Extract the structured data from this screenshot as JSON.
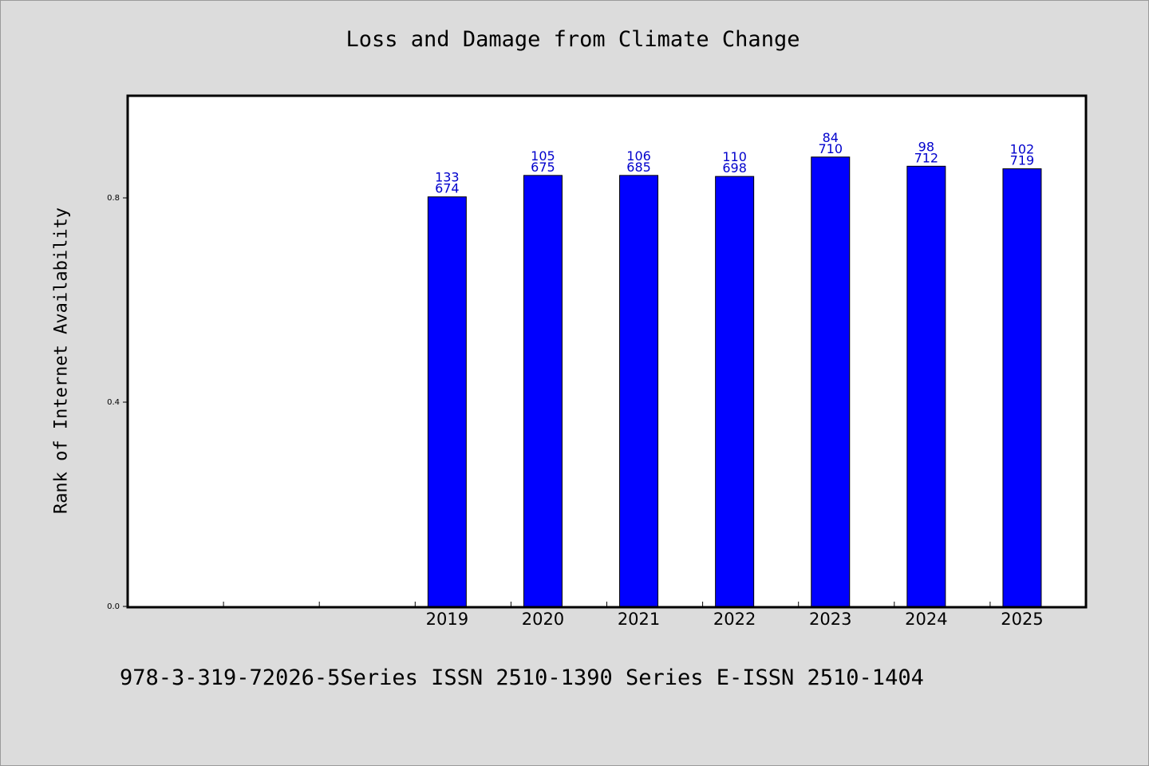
{
  "chart_data": {
    "type": "bar",
    "title": "Loss and Damage from Climate Change",
    "xlabel": "",
    "ylabel": "Rank of Internet Availability",
    "categories": [
      "",
      "",
      "",
      "2019",
      "2020",
      "2021",
      "2022",
      "2023",
      "2024",
      "2025"
    ],
    "values": [
      null,
      null,
      null,
      0.802,
      0.844,
      0.844,
      0.842,
      0.88,
      0.862,
      0.857
    ],
    "data_labels": [
      null,
      null,
      null,
      [
        "133",
        "674"
      ],
      [
        "105",
        "675"
      ],
      [
        "106",
        "685"
      ],
      [
        "110",
        "698"
      ],
      [
        "84",
        "710"
      ],
      [
        "98",
        "712"
      ],
      [
        "102",
        "719"
      ]
    ],
    "yticks": [
      0.0,
      0.4,
      0.8
    ],
    "ytick_labels": [
      "0.0",
      "0.4",
      "0.8"
    ],
    "ylim": [
      0,
      1.0
    ],
    "grid": false,
    "legend": "none"
  },
  "footer_text": "978-3-319-72026-5Series ISSN 2510-1390 Series E-ISSN 2510-1404",
  "colors": {
    "bar_fill": "#0000ff",
    "data_label": "#0000cc",
    "background": "#dcdcdc",
    "plot_background": "#ffffff"
  }
}
